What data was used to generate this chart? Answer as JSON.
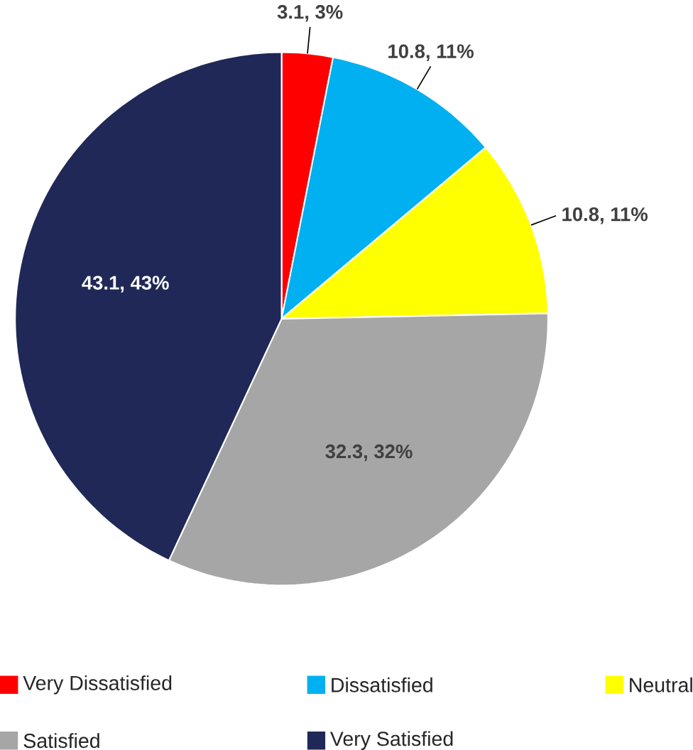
{
  "chart_data": {
    "type": "pie",
    "categories": [
      "Very Dissatisfied",
      "Dissatisfied",
      "Neutral",
      "Satisfied",
      "Very Satisfied"
    ],
    "values": [
      3.1,
      10.8,
      10.8,
      32.3,
      43.1
    ],
    "colors": [
      "#ff0000",
      "#00b0f0",
      "#ffff00",
      "#a6a6a6",
      "#1f2856"
    ],
    "value_labels": [
      "3.1, 3%",
      "10.8, 11%",
      "10.8, 11%",
      "32.3, 32%",
      "43.1, 43%"
    ],
    "legend": "bottom"
  }
}
